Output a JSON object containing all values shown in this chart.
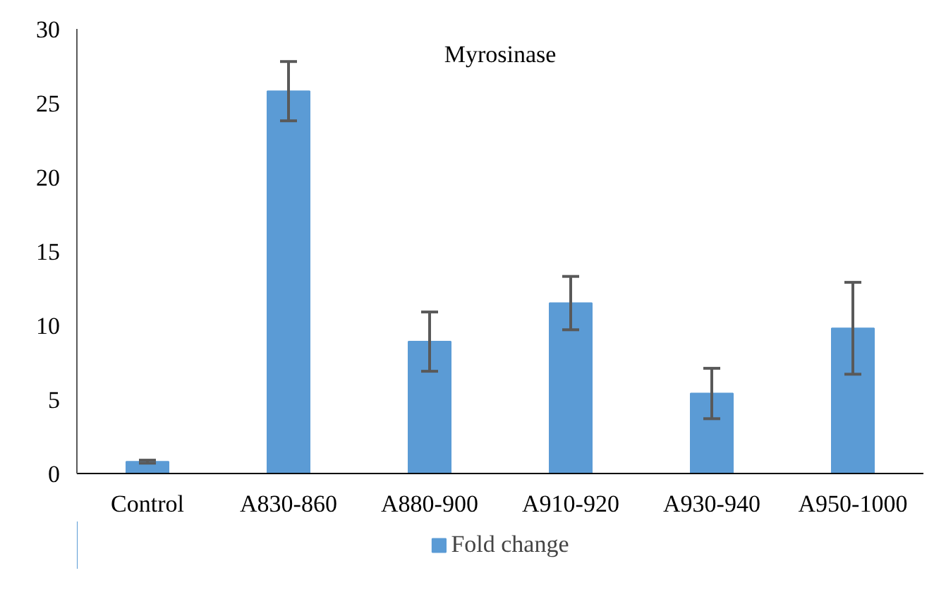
{
  "chart_data": {
    "type": "bar",
    "title": "Myrosinase",
    "categories": [
      "Control",
      "A830-860",
      "A880-900",
      "A910-920",
      "A930-940",
      "A950-1000"
    ],
    "series": [
      {
        "name": "Fold change",
        "color": "#5b9bd5",
        "values": [
          0.8,
          25.8,
          8.9,
          11.5,
          5.4,
          9.8
        ],
        "errors": [
          0.1,
          2,
          2,
          1.8,
          1.7,
          3.1
        ]
      }
    ],
    "ylim": [
      0,
      30
    ],
    "yticks": [
      0,
      5,
      10,
      15,
      20,
      25,
      30
    ],
    "grid": false,
    "legend": "bottom"
  }
}
